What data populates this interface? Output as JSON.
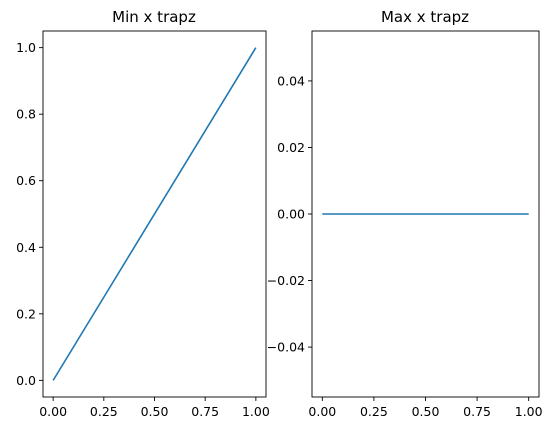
{
  "chart_data": [
    {
      "type": "line",
      "title": "Min x trapz",
      "xlabel": "",
      "ylabel": "",
      "xlim": [
        -0.05,
        1.05
      ],
      "ylim": [
        -0.05,
        1.05
      ],
      "xticks": [
        0.0,
        0.25,
        0.5,
        0.75,
        1.0
      ],
      "xtick_labels": [
        "0.00",
        "0.25",
        "0.50",
        "0.75",
        "1.00"
      ],
      "yticks": [
        0.0,
        0.2,
        0.4,
        0.6,
        0.8,
        1.0
      ],
      "ytick_labels": [
        "0.0",
        "0.2",
        "0.4",
        "0.6",
        "0.8",
        "1.0"
      ],
      "grid": false,
      "series": [
        {
          "color": "#1f77b4",
          "x": [
            0.0,
            1.0
          ],
          "y": [
            0.0,
            1.0
          ]
        }
      ]
    },
    {
      "type": "line",
      "title": "Max x trapz",
      "xlabel": "",
      "ylabel": "",
      "xlim": [
        -0.05,
        1.05
      ],
      "ylim": [
        -0.055,
        0.055
      ],
      "xticks": [
        0.0,
        0.25,
        0.5,
        0.75,
        1.0
      ],
      "xtick_labels": [
        "0.00",
        "0.25",
        "0.50",
        "0.75",
        "1.00"
      ],
      "yticks": [
        0.04,
        0.02,
        0.0,
        -0.02,
        -0.04
      ],
      "ytick_labels": [
        "0.04",
        "0.02",
        "0.00",
        "−0.02",
        "−0.04"
      ],
      "grid": false,
      "series": [
        {
          "color": "#1f77b4",
          "x": [
            0.0,
            1.0
          ],
          "y": [
            0.0,
            0.0
          ]
        }
      ]
    }
  ]
}
